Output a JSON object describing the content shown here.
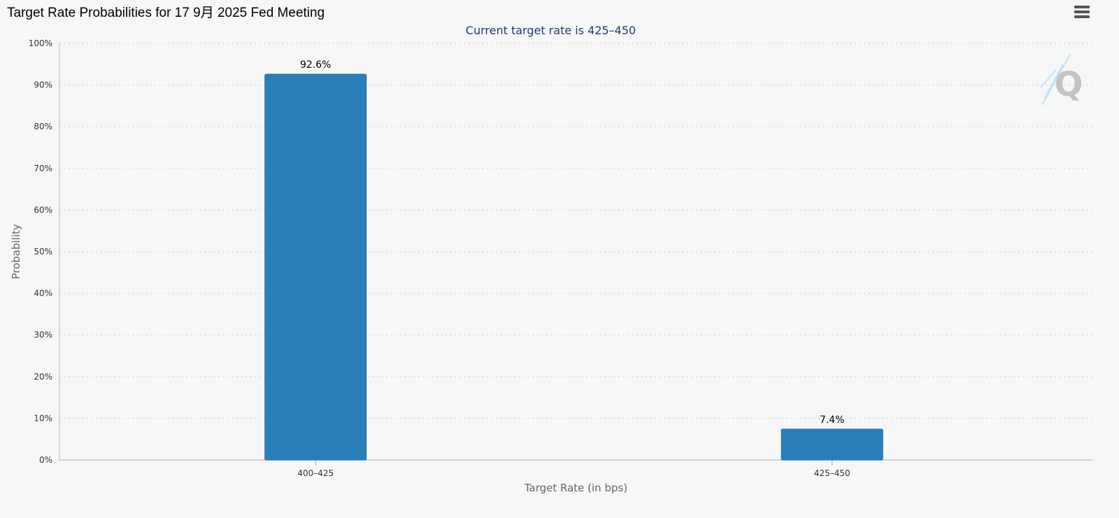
{
  "header": {
    "title": "Target Rate Probabilities for 17 9月 2025 Fed Meeting",
    "subtitle": "Current target rate is 425–450"
  },
  "menu": {
    "icon": "hamburger-menu-icon"
  },
  "watermark": {
    "icon": "q-logo-icon",
    "text": "Q"
  },
  "chart_data": {
    "type": "bar",
    "title": "Target Rate Probabilities for 17 9月 2025 Fed Meeting",
    "subtitle": "Current target rate is 425–450",
    "categories": [
      "400–425",
      "425–450"
    ],
    "values": [
      92.6,
      7.4
    ],
    "data_labels": [
      "92.6%",
      "7.4%"
    ],
    "xlabel": "Target Rate (in bps)",
    "ylabel": "Probability",
    "ylim": [
      0,
      100
    ],
    "yticks": [
      "0%",
      "10%",
      "20%",
      "30%",
      "40%",
      "50%",
      "60%",
      "70%",
      "80%",
      "90%",
      "100%"
    ],
    "grid": true,
    "bar_color": "#2980b9",
    "legend": "none"
  }
}
